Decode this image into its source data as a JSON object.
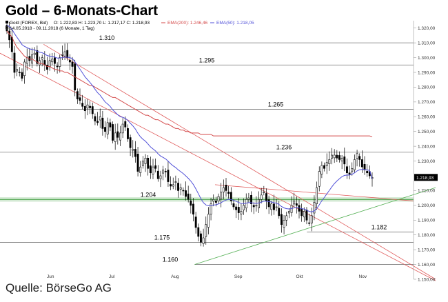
{
  "title": "Gold – 6-Monats-Chart",
  "source": "Quelle: BörseGo AG",
  "legend": {
    "instrument": "Gold (FOREX, Bid)",
    "ohlc": "O: 1.222,83  H: 1.223,70  L: 1.217,17  C: 1.218,93",
    "ema200": "EMA(200): 1.246,46",
    "ema50": "EMA(50): 1.218,05",
    "range": "14.05.2018 - 09.11.2018  (6 Monate, 1 Tag)"
  },
  "colors": {
    "ema200": "#d44a4a",
    "ema50": "#5050d8",
    "trend_down": "#e05a5a",
    "trend_up": "#55b055",
    "support_band": "#cfe8cf",
    "price_tag": "#000000"
  },
  "chart_data": {
    "type": "candlestick",
    "title": "Gold – 6-Monats-Chart",
    "ylim": [
      1150,
      1325
    ],
    "yticks": [
      1320,
      1310,
      1300,
      1290,
      1280,
      1270,
      1260,
      1250,
      1240,
      1230,
      1210,
      1200,
      1190,
      1180,
      1170,
      1160,
      1150
    ],
    "ytick_labels": [
      "1.320,00",
      "1.310,00",
      "1.300,00",
      "1.290,00",
      "1.280,00",
      "1.270,00",
      "1.260,00",
      "1.250,00",
      "1.240,00",
      "1.230,00",
      "1.210,00",
      "1.200,00",
      "1.190,00",
      "1.180,00",
      "1.170,00",
      "1.160,00",
      "1.150,00"
    ],
    "xlabels": [
      "Jun",
      "Jul",
      "Aug",
      "Sep",
      "Okt",
      "Nov"
    ],
    "x_start": "2018-05-14",
    "x_end": "2018-11-09",
    "last_price": "1.218,93",
    "horizontal_levels": [
      {
        "value": 1310,
        "label": "1.310"
      },
      {
        "value": 1295,
        "label": "1.295"
      },
      {
        "value": 1265,
        "label": "1.265"
      },
      {
        "value": 1236,
        "label": "1.236"
      },
      {
        "value": 1204,
        "label": "1.204"
      },
      {
        "value": 1182,
        "label": "1.182"
      },
      {
        "value": 1175,
        "label": "1.175"
      },
      {
        "value": 1160,
        "label": "1.160"
      }
    ],
    "closes": [
      1318,
      1312,
      1304,
      1290,
      1292,
      1290,
      1286,
      1297,
      1300,
      1298,
      1302,
      1303,
      1296,
      1298,
      1300,
      1295,
      1292,
      1298,
      1299,
      1296,
      1294,
      1300,
      1302,
      1304,
      1300,
      1297,
      1294,
      1278,
      1272,
      1271,
      1267,
      1264,
      1268,
      1266,
      1262,
      1257,
      1256,
      1260,
      1252,
      1250,
      1256,
      1253,
      1244,
      1249,
      1246,
      1249,
      1255,
      1253,
      1245,
      1239,
      1238,
      1233,
      1223,
      1226,
      1230,
      1232,
      1225,
      1222,
      1226,
      1225,
      1218,
      1220,
      1224,
      1223,
      1216,
      1213,
      1214,
      1216,
      1210,
      1212,
      1210,
      1206,
      1204,
      1200,
      1194,
      1185,
      1179,
      1175,
      1178,
      1187,
      1194,
      1201,
      1204,
      1202,
      1206,
      1209,
      1212,
      1210,
      1208,
      1203,
      1199,
      1197,
      1195,
      1196,
      1200,
      1204,
      1205,
      1201,
      1199,
      1200,
      1204,
      1207,
      1209,
      1203,
      1199,
      1201,
      1197,
      1199,
      1193,
      1187,
      1190,
      1193,
      1196,
      1200,
      1203,
      1200,
      1196,
      1193,
      1196,
      1190,
      1188,
      1193,
      1202,
      1212,
      1223,
      1227,
      1225,
      1229,
      1231,
      1234,
      1234,
      1232,
      1231,
      1232,
      1228,
      1222,
      1221,
      1225,
      1231,
      1235,
      1231,
      1226,
      1224,
      1222,
      1220,
      1218.93
    ],
    "ema200": [
      1318,
      1316,
      1314,
      1310,
      1307,
      1305,
      1303,
      1301,
      1300,
      1299,
      1299,
      1298,
      1297,
      1296,
      1296,
      1295,
      1294,
      1294,
      1293,
      1292,
      1292,
      1291,
      1291,
      1290,
      1290,
      1289,
      1288,
      1287,
      1286,
      1285,
      1284,
      1283,
      1282,
      1281,
      1281,
      1280,
      1279,
      1278,
      1277,
      1276,
      1275,
      1274,
      1273,
      1273,
      1272,
      1271,
      1270,
      1269,
      1268,
      1267,
      1266,
      1265,
      1264,
      1263,
      1262,
      1261,
      1261,
      1260,
      1259,
      1258,
      1258,
      1257,
      1256,
      1255,
      1255,
      1254,
      1253,
      1252,
      1252,
      1251,
      1251,
      1250,
      1250,
      1249,
      1249,
      1249,
      1249,
      1248,
      1248,
      1248,
      1248,
      1248,
      1247,
      1247,
      1247,
      1247,
      1247,
      1247,
      1247,
      1247,
      1247,
      1247,
      1247,
      1247,
      1247,
      1247,
      1247,
      1247,
      1247,
      1247,
      1247,
      1247,
      1247,
      1247,
      1247,
      1247,
      1247,
      1247,
      1247,
      1247,
      1247,
      1247,
      1247,
      1247,
      1247,
      1247,
      1247,
      1247,
      1247,
      1247,
      1247,
      1247,
      1247,
      1247,
      1247,
      1247,
      1247,
      1247,
      1247,
      1247,
      1247,
      1247,
      1247,
      1247,
      1247,
      1247,
      1247,
      1247,
      1247,
      1247,
      1247,
      1247,
      1247,
      1247,
      1247,
      1246.46
    ]
  }
}
